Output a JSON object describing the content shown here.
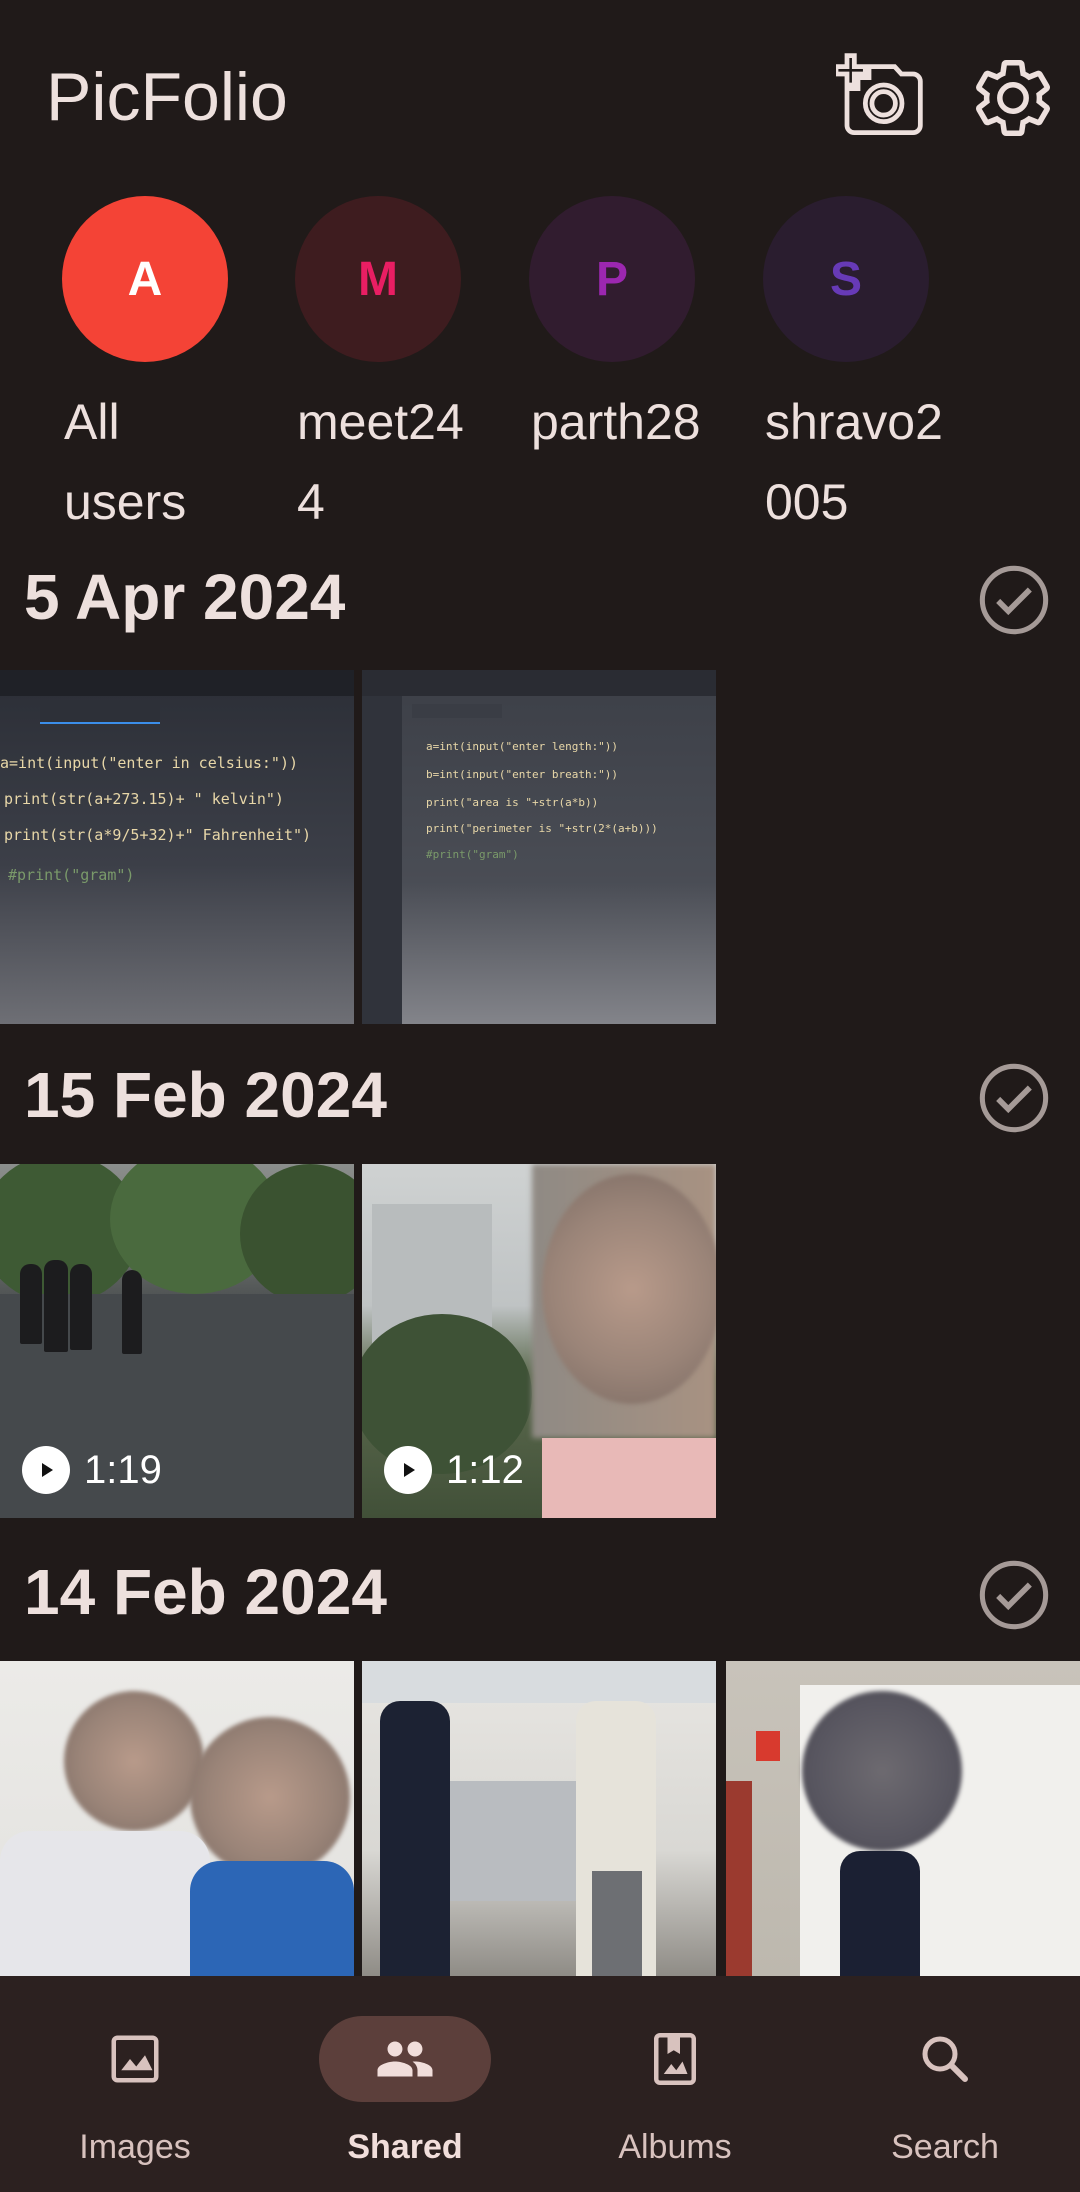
{
  "app": {
    "title": "PicFolio"
  },
  "colors": {
    "background": "#201a19",
    "surface": "#2c2120",
    "text": "#ede0dd",
    "accent_active": "#5c3f3b"
  },
  "header": {
    "icons": [
      "add-photo-camera-icon",
      "gear-icon"
    ]
  },
  "users": [
    {
      "initial": "A",
      "label": "All users",
      "avatar_bg": "#f44336",
      "initial_color": "#ffffff"
    },
    {
      "initial": "M",
      "label": "meet244",
      "avatar_bg": "#3e1c1f",
      "initial_color": "#e91e63"
    },
    {
      "initial": "P",
      "label": "parth28",
      "avatar_bg": "#311c2f",
      "initial_color": "#9c27b0"
    },
    {
      "initial": "S",
      "label": "shravo2005",
      "avatar_bg": "#2a1d2f",
      "initial_color": "#673ab7"
    }
  ],
  "sections": [
    {
      "date": "5 Apr 2024",
      "items": [
        {
          "type": "image"
        },
        {
          "type": "image"
        }
      ]
    },
    {
      "date": "15 Feb 2024",
      "items": [
        {
          "type": "video",
          "duration": "1:19"
        },
        {
          "type": "video",
          "duration": "1:12"
        }
      ]
    },
    {
      "date": "14 Feb 2024",
      "items": [
        {
          "type": "image"
        },
        {
          "type": "image"
        },
        {
          "type": "image"
        }
      ]
    }
  ],
  "photo_text": {
    "code1": [
      "a=int(input(\"enter in celsius:\"))",
      "print(str(a+273.15)+ \" kelvin\")",
      "print(str(a*9/5+32)+\" Fahrenheit\")",
      "#print(\"gram\")"
    ],
    "code2": [
      "a=int(input(\"enter length:\"))",
      "b=int(input(\"enter breath:\"))",
      "print(\"area is \"+str(a*b))",
      "print(\"perimeter is \"+str(2*(a+b)))",
      "#print(\"gram\")"
    ]
  },
  "bottom_nav": [
    {
      "label": "Images",
      "icon": "image-icon",
      "active": false
    },
    {
      "label": "Shared",
      "icon": "people-icon",
      "active": true
    },
    {
      "label": "Albums",
      "icon": "bookmark-album-icon",
      "active": false
    },
    {
      "label": "Search",
      "icon": "search-icon",
      "active": false
    }
  ]
}
